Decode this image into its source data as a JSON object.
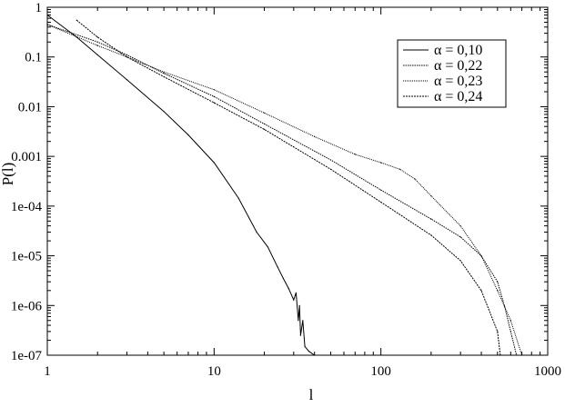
{
  "chart_data": {
    "type": "line",
    "xlabel": "l",
    "ylabel": "P(l)",
    "xscale": "log",
    "yscale": "log",
    "xlim": [
      1,
      1000
    ],
    "ylim": [
      1e-07,
      1
    ],
    "x_ticks": [
      {
        "value": 1,
        "label": "1"
      },
      {
        "value": 10,
        "label": "10"
      },
      {
        "value": 100,
        "label": "100"
      },
      {
        "value": 1000,
        "label": "1000"
      }
    ],
    "y_ticks": [
      {
        "value": 1,
        "label": "1"
      },
      {
        "value": 0.1,
        "label": "0.1"
      },
      {
        "value": 0.01,
        "label": "0.01"
      },
      {
        "value": 0.001,
        "label": "0.001"
      },
      {
        "value": 0.0001,
        "label": "1e-04"
      },
      {
        "value": 1e-05,
        "label": "1e-05"
      },
      {
        "value": 1e-06,
        "label": "1e-06"
      },
      {
        "value": 1e-07,
        "label": "1e-07"
      }
    ],
    "grid": false,
    "legend_position": "top-right",
    "series": [
      {
        "name": "α = 0,10",
        "color": "#000000",
        "x": [
          1,
          1.5,
          2,
          3,
          5,
          7,
          10,
          14,
          18,
          21,
          24,
          26,
          28,
          30,
          31,
          32,
          32.5,
          33,
          34,
          35,
          37,
          40
        ],
        "y": [
          0.7,
          0.25,
          0.11,
          0.035,
          0.008,
          0.0027,
          0.00075,
          0.000145,
          3e-05,
          1.5e-05,
          6e-06,
          3.5e-06,
          2.2e-06,
          1.3e-06,
          1.8e-06,
          5e-07,
          1e-06,
          2.5e-07,
          5e-07,
          1.5e-07,
          1.2e-07,
          1e-07
        ]
      },
      {
        "name": "α = 0,22",
        "color": "#000000",
        "x": [
          1,
          2,
          3,
          5,
          10,
          20,
          50,
          100,
          200,
          300,
          400,
          500,
          550,
          600,
          650
        ],
        "y": [
          0.45,
          0.2,
          0.11,
          0.047,
          0.016,
          0.0045,
          0.00085,
          0.00021,
          5.5e-05,
          2.4e-05,
          1e-05,
          3e-06,
          1e-06,
          3e-07,
          1e-07
        ]
      },
      {
        "name": "α = 0,23",
        "color": "#000000",
        "x": [
          1,
          2,
          3,
          5,
          10,
          20,
          40,
          70,
          100,
          130,
          160,
          200,
          300,
          400,
          500,
          600,
          700
        ],
        "y": [
          0.45,
          0.17,
          0.1,
          0.05,
          0.022,
          0.0075,
          0.0025,
          0.0011,
          0.00075,
          0.00055,
          0.00035,
          0.00016,
          4e-05,
          1e-05,
          2e-06,
          5e-07,
          1e-07
        ]
      },
      {
        "name": "α = 0,24",
        "color": "#000000",
        "x": [
          1.5,
          2,
          3,
          5,
          10,
          20,
          50,
          100,
          200,
          300,
          400,
          500,
          520
        ],
        "y": [
          0.55,
          0.25,
          0.1,
          0.04,
          0.012,
          0.0035,
          0.00055,
          0.00012,
          2.6e-05,
          8e-06,
          2e-06,
          3e-07,
          1e-07
        ]
      }
    ]
  }
}
